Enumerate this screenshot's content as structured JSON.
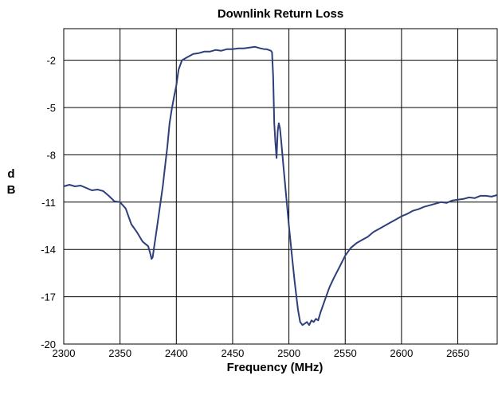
{
  "chart_data": {
    "type": "line",
    "title": "Downlink Return Loss",
    "xlabel": "Frequency (MHz)",
    "ylabel": "dB",
    "xlim": [
      2300,
      2685
    ],
    "ylim": [
      -20,
      0
    ],
    "x_ticks": [
      2300,
      2350,
      2400,
      2450,
      2500,
      2550,
      2600,
      2650
    ],
    "y_ticks": [
      -2,
      -5,
      -8,
      -11,
      -14,
      -17,
      -20
    ],
    "x_tick_labels": [
      "2300",
      "2350",
      "2400",
      "2450",
      "2500",
      "2550",
      "2600",
      "2650"
    ],
    "y_tick_labels": [
      "-2",
      "-5",
      "-8",
      "-11",
      "-14",
      "-17",
      "-20"
    ],
    "grid": true,
    "line_color": "#2e3f7a",
    "series": [
      {
        "x": [
          2300,
          2305,
          2310,
          2315,
          2320,
          2325,
          2330,
          2335,
          2340,
          2345,
          2350,
          2355,
          2360,
          2365,
          2370,
          2375,
          2377,
          2378,
          2379,
          2380,
          2382,
          2385,
          2388,
          2390,
          2392,
          2394,
          2396,
          2398,
          2400,
          2402,
          2405,
          2410,
          2415,
          2420,
          2425,
          2430,
          2435,
          2440,
          2445,
          2450,
          2455,
          2460,
          2465,
          2470,
          2475,
          2478,
          2480,
          2482,
          2484,
          2485,
          2486,
          2487,
          2488,
          2489,
          2490,
          2491,
          2492,
          2493,
          2494,
          2495,
          2497,
          2500,
          2503,
          2505,
          2508,
          2510,
          2512,
          2514,
          2516,
          2518,
          2520,
          2522,
          2524,
          2526,
          2528,
          2530,
          2533,
          2536,
          2540,
          2545,
          2550,
          2555,
          2560,
          2565,
          2570,
          2575,
          2580,
          2585,
          2590,
          2595,
          2600,
          2605,
          2610,
          2615,
          2620,
          2625,
          2630,
          2635,
          2640,
          2645,
          2650,
          2655,
          2660,
          2665,
          2670,
          2675,
          2680,
          2685
        ],
        "y": [
          -10.0,
          -9.9,
          -10.0,
          -9.95,
          -10.1,
          -10.25,
          -10.2,
          -10.3,
          -10.6,
          -10.95,
          -11.0,
          -11.4,
          -12.4,
          -12.9,
          -13.5,
          -13.8,
          -14.3,
          -14.6,
          -14.5,
          -14.0,
          -13.0,
          -11.5,
          -10.0,
          -8.7,
          -7.5,
          -6.0,
          -5.1,
          -4.3,
          -3.6,
          -2.6,
          -2.0,
          -1.8,
          -1.6,
          -1.55,
          -1.45,
          -1.45,
          -1.35,
          -1.4,
          -1.3,
          -1.3,
          -1.25,
          -1.25,
          -1.2,
          -1.15,
          -1.25,
          -1.3,
          -1.3,
          -1.35,
          -1.4,
          -1.5,
          -3.0,
          -6.0,
          -7.2,
          -8.2,
          -6.5,
          -6.0,
          -6.3,
          -7.0,
          -7.8,
          -8.6,
          -10.2,
          -12.5,
          -14.6,
          -16.0,
          -17.8,
          -18.6,
          -18.8,
          -18.7,
          -18.6,
          -18.8,
          -18.5,
          -18.6,
          -18.4,
          -18.5,
          -18.0,
          -17.6,
          -17.0,
          -16.4,
          -15.8,
          -15.1,
          -14.4,
          -13.9,
          -13.6,
          -13.4,
          -13.2,
          -12.9,
          -12.7,
          -12.5,
          -12.3,
          -12.1,
          -11.9,
          -11.75,
          -11.55,
          -11.45,
          -11.3,
          -11.2,
          -11.1,
          -11.0,
          -11.05,
          -10.9,
          -10.85,
          -10.8,
          -10.7,
          -10.75,
          -10.6,
          -10.6,
          -10.65,
          -10.55
        ]
      }
    ]
  }
}
